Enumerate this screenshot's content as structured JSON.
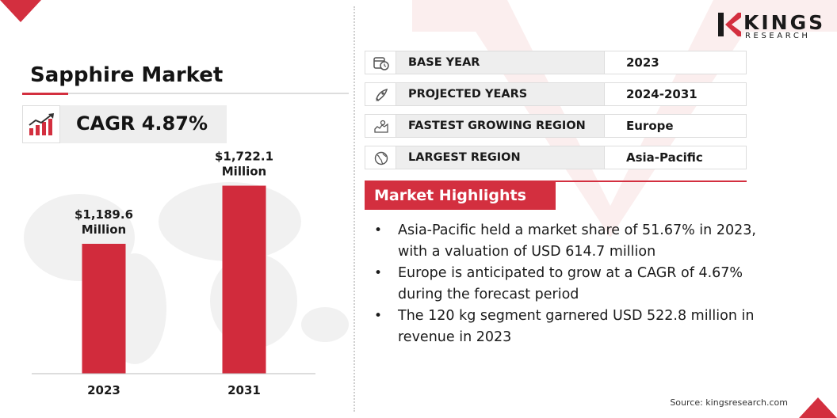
{
  "title": "Sapphire Market",
  "cagr": "CAGR 4.87%",
  "brand": {
    "name": "KINGS",
    "tagline": "RESEARCH"
  },
  "colors": {
    "accent": "#d32f3f",
    "bar": "#d12b3c",
    "panel": "#eeeeee"
  },
  "info_rows": [
    {
      "icon": "calendar-clock-icon",
      "label": "BASE YEAR",
      "value": "2023"
    },
    {
      "icon": "rocket-icon",
      "label": "PROJECTED YEARS",
      "value": "2024-2031"
    },
    {
      "icon": "region-map-icon",
      "label": "FASTEST GROWING REGION",
      "value": "Europe"
    },
    {
      "icon": "globe-icon",
      "label": "LARGEST REGION",
      "value": "Asia-Pacific"
    }
  ],
  "highlights": {
    "title": "Market Highlights",
    "items": [
      "Asia-Pacific held a market share of 51.67% in 2023, with a valuation of USD 614.7 million",
      "Europe is anticipated to grow at a CAGR of 4.67% during the forecast period",
      "The 120 kg segment garnered USD 522.8 million in revenue in 2023"
    ]
  },
  "source": "Source: kingsresearch.com",
  "chart_data": {
    "type": "bar",
    "categories": [
      "2023",
      "2031"
    ],
    "values": [
      1189.6,
      1722.1
    ],
    "data_labels": [
      [
        "$1,189.6",
        "Million"
      ],
      [
        "$1,722.1",
        "Million"
      ]
    ],
    "title": "",
    "xlabel": "",
    "ylabel": "",
    "ylim": [
      0,
      1900
    ],
    "grid": false,
    "legend": "none"
  }
}
